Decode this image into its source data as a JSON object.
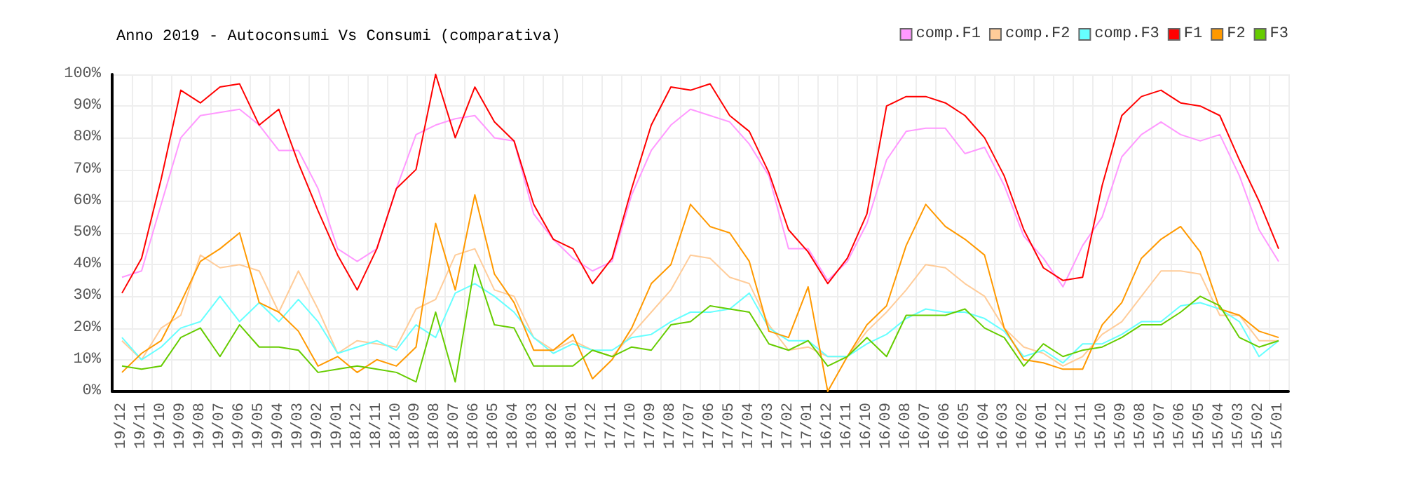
{
  "chart_data": {
    "type": "line",
    "title": "Anno 2019 - Autoconsumi Vs Consumi (comparativa)",
    "categories": [
      "19/12",
      "19/11",
      "19/10",
      "19/09",
      "19/08",
      "19/07",
      "19/06",
      "19/05",
      "19/04",
      "19/03",
      "19/02",
      "19/01",
      "18/12",
      "18/11",
      "18/10",
      "18/09",
      "18/08",
      "18/07",
      "18/06",
      "18/05",
      "18/04",
      "18/03",
      "18/02",
      "18/01",
      "17/12",
      "17/11",
      "17/10",
      "17/09",
      "17/08",
      "17/07",
      "17/06",
      "17/05",
      "17/04",
      "17/03",
      "17/02",
      "17/01",
      "16/12",
      "16/11",
      "16/10",
      "16/09",
      "16/08",
      "16/07",
      "16/06",
      "16/05",
      "16/04",
      "16/03",
      "16/02",
      "16/01",
      "15/12",
      "15/11",
      "15/10",
      "15/09",
      "15/08",
      "15/07",
      "15/06",
      "15/05",
      "15/04",
      "15/03",
      "15/02",
      "15/01"
    ],
    "series": [
      {
        "name": "comp.F1",
        "color": "#ff99ff",
        "values": [
          36,
          38,
          59,
          80,
          87,
          88,
          89,
          84,
          76,
          76,
          64,
          45,
          41,
          45,
          64,
          81,
          84,
          86,
          87,
          80,
          79,
          56,
          48,
          42,
          38,
          41,
          62,
          76,
          84,
          89,
          87,
          85,
          78,
          68,
          45,
          45,
          35,
          41,
          53,
          73,
          82,
          83,
          83,
          75,
          77,
          65,
          49,
          42,
          33,
          46,
          55,
          74,
          81,
          85,
          81,
          79,
          81,
          68,
          51,
          41
        ]
      },
      {
        "name": "comp.F2",
        "color": "#ffcc99",
        "values": [
          16,
          10,
          20,
          24,
          43,
          39,
          40,
          38,
          25,
          38,
          26,
          12,
          16,
          15,
          14,
          26,
          29,
          43,
          45,
          32,
          30,
          17,
          13,
          16,
          13,
          11,
          18,
          25,
          32,
          43,
          42,
          36,
          34,
          21,
          13,
          14,
          11,
          11,
          19,
          25,
          32,
          40,
          39,
          34,
          30,
          20,
          14,
          12,
          8,
          11,
          18,
          22,
          30,
          38,
          38,
          37,
          24,
          24,
          16,
          16
        ]
      },
      {
        "name": "comp.F3",
        "color": "#66ffff",
        "values": [
          17,
          10,
          14,
          20,
          22,
          30,
          22,
          28,
          22,
          29,
          22,
          12,
          14,
          16,
          13,
          21,
          17,
          31,
          34,
          30,
          25,
          17,
          12,
          15,
          13,
          13,
          17,
          18,
          22,
          25,
          25,
          26,
          31,
          20,
          16,
          16,
          11,
          11,
          15,
          18,
          23,
          26,
          25,
          25,
          23,
          19,
          11,
          13,
          9,
          15,
          15,
          18,
          22,
          22,
          27,
          28,
          26,
          22,
          11,
          16
        ]
      },
      {
        "name": "F1",
        "color": "#ff0000",
        "values": [
          31,
          42,
          67,
          95,
          91,
          96,
          97,
          84,
          89,
          72,
          57,
          43,
          32,
          45,
          64,
          70,
          100,
          80,
          96,
          85,
          79,
          59,
          48,
          45,
          34,
          42,
          64,
          84,
          96,
          95,
          97,
          87,
          82,
          69,
          51,
          44,
          34,
          42,
          56,
          90,
          93,
          93,
          91,
          87,
          80,
          68,
          51,
          39,
          35,
          36,
          65,
          87,
          93,
          95,
          91,
          90,
          87,
          73,
          60,
          45
        ]
      },
      {
        "name": "F2",
        "color": "#ff9900",
        "values": [
          6,
          12,
          16,
          28,
          41,
          45,
          50,
          28,
          25,
          19,
          8,
          11,
          6,
          10,
          8,
          14,
          53,
          32,
          62,
          37,
          28,
          13,
          13,
          18,
          4,
          10,
          20,
          34,
          40,
          59,
          52,
          50,
          41,
          19,
          17,
          33,
          0,
          11,
          21,
          27,
          46,
          59,
          52,
          48,
          43,
          20,
          10,
          9,
          7,
          7,
          21,
          28,
          42,
          48,
          52,
          44,
          26,
          24,
          19,
          17
        ]
      },
      {
        "name": "F3",
        "color": "#66cc00",
        "values": [
          8,
          7,
          8,
          17,
          20,
          11,
          21,
          14,
          14,
          13,
          6,
          7,
          8,
          7,
          6,
          3,
          25,
          3,
          40,
          21,
          20,
          8,
          8,
          8,
          13,
          11,
          14,
          13,
          21,
          22,
          27,
          26,
          25,
          15,
          13,
          16,
          8,
          11,
          17,
          11,
          24,
          24,
          24,
          26,
          20,
          17,
          8,
          15,
          11,
          13,
          14,
          17,
          21,
          21,
          25,
          30,
          27,
          17,
          14,
          16
        ]
      }
    ],
    "ylim": [
      0,
      100
    ],
    "yticks": [
      {
        "value": 0,
        "label": "0%"
      },
      {
        "value": 10,
        "label": "10%"
      },
      {
        "value": 20,
        "label": "20%"
      },
      {
        "value": 30,
        "label": "30%"
      },
      {
        "value": 40,
        "label": "40%"
      },
      {
        "value": 50,
        "label": "50%"
      },
      {
        "value": 60,
        "label": "60%"
      },
      {
        "value": 70,
        "label": "70%"
      },
      {
        "value": 80,
        "label": "80%"
      },
      {
        "value": 90,
        "label": "90%"
      },
      {
        "value": 100,
        "label": "100%"
      }
    ],
    "grid": true,
    "legend": "top right",
    "marker": "none",
    "line_style": "solid"
  }
}
